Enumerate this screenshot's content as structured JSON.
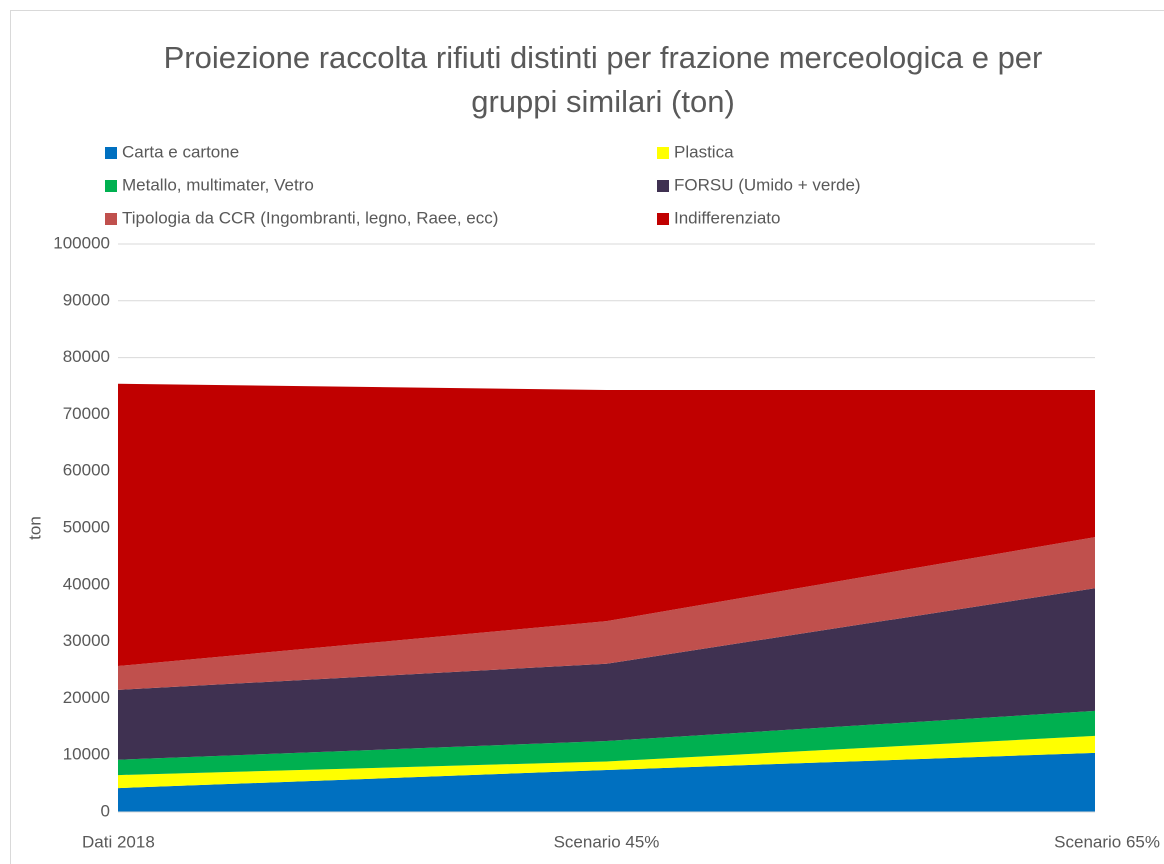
{
  "chart_data": {
    "type": "stacked_area",
    "title": "Proiezione raccolta rifiuti distinti per frazione merceologica e per gruppi similari (ton)",
    "y_label": "ton",
    "categories": [
      "Dati 2018",
      "Scenario 45%",
      "Scenario 65%"
    ],
    "series": [
      {
        "name": "Carta e cartone",
        "color": "#0070c0",
        "values": [
          4200,
          7400,
          10400
        ]
      },
      {
        "name": "Plastica",
        "color": "#ffff00",
        "values": [
          2300,
          1500,
          3000
        ]
      },
      {
        "name": "Metallo, multimater, Vetro",
        "color": "#00b050",
        "values": [
          2700,
          3600,
          4400
        ]
      },
      {
        "name": "FORSU (Umido + verde)",
        "color": "#3f3151",
        "values": [
          12300,
          13600,
          21600
        ]
      },
      {
        "name": "Tipologia da CCR (Ingombranti, legno, Raee, ecc)",
        "color": "#c0504d",
        "values": [
          4200,
          7500,
          9000
        ]
      },
      {
        "name": "Indifferenziato",
        "color": "#c00000",
        "values": [
          49700,
          40700,
          25900
        ]
      }
    ],
    "ylim": [
      0,
      100000
    ],
    "yticks": [
      0,
      10000,
      20000,
      30000,
      40000,
      50000,
      60000,
      70000,
      80000,
      90000,
      100000
    ],
    "grid": true
  }
}
